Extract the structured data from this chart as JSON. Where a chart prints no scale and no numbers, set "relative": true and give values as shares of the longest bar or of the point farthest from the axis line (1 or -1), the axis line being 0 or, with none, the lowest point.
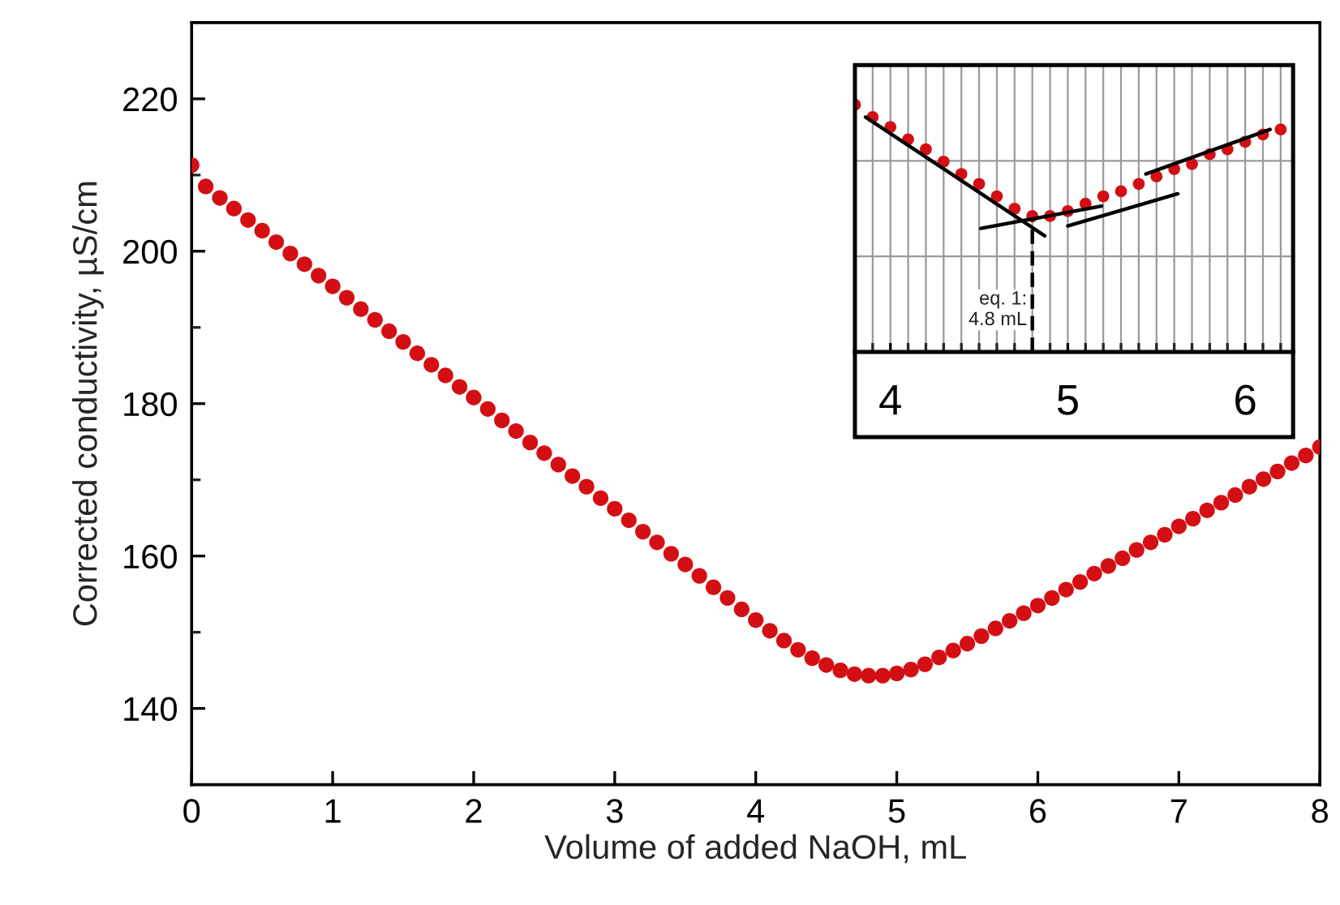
{
  "chart_data": [
    {
      "type": "scatter",
      "xlabel": "Volume of added NaOH, mL",
      "ylabel": "Corrected conductivity, µS/cm",
      "marker": "circle",
      "grid": false,
      "xlim": [
        0,
        8
      ],
      "ylim": [
        130,
        230
      ],
      "xticks": [
        0,
        1,
        2,
        3,
        4,
        5,
        6,
        7,
        8
      ],
      "yticks": [
        140,
        {
          "value": 150,
          "label": null
        },
        160,
        {
          "value": 170,
          "label": null
        },
        180,
        {
          "value": 190,
          "label": null
        },
        200,
        {
          "value": 210,
          "label": null
        },
        220
      ],
      "series": [
        {
          "color": "#d40f14",
          "x": [
            0,
            0.1,
            0.2,
            0.3,
            0.4,
            0.5,
            0.6,
            0.7,
            0.8,
            0.9,
            1.0,
            1.1,
            1.2,
            1.3,
            1.4,
            1.5,
            1.6,
            1.7,
            1.8,
            1.9,
            2.0,
            2.1,
            2.2,
            2.3,
            2.4,
            2.5,
            2.6,
            2.7,
            2.8,
            2.9,
            3.0,
            3.1,
            3.2,
            3.3,
            3.4,
            3.5,
            3.6,
            3.7,
            3.8,
            3.9,
            4.0,
            4.1,
            4.2,
            4.3,
            4.4,
            4.5,
            4.6,
            4.7,
            4.8,
            4.9,
            5.0,
            5.1,
            5.2,
            5.3,
            5.4,
            5.5,
            5.6,
            5.7,
            5.8,
            5.9,
            6.0,
            6.1,
            6.2,
            6.3,
            6.4,
            6.5,
            6.6,
            6.7,
            6.8,
            6.9,
            7.0,
            7.1,
            7.2,
            7.3,
            7.4,
            7.5,
            7.6,
            7.7,
            7.8,
            7.9,
            8.0
          ],
          "values": [
            211.3,
            208.5,
            207.0,
            205.6,
            204.1,
            202.7,
            201.2,
            199.7,
            198.3,
            196.8,
            195.4,
            193.9,
            192.4,
            191.0,
            189.5,
            188.1,
            186.6,
            185.1,
            183.7,
            182.2,
            180.8,
            179.3,
            177.8,
            176.4,
            174.9,
            173.5,
            172.0,
            170.5,
            169.1,
            167.6,
            166.2,
            164.7,
            163.2,
            161.8,
            160.3,
            158.9,
            157.4,
            155.9,
            154.5,
            153.0,
            151.6,
            150.2,
            148.9,
            147.7,
            146.6,
            145.7,
            145.0,
            144.5,
            144.3,
            144.3,
            144.6,
            145.1,
            145.8,
            146.7,
            147.6,
            148.5,
            149.5,
            150.5,
            151.5,
            152.5,
            153.5,
            154.5,
            155.6,
            156.6,
            157.7,
            158.7,
            159.7,
            160.8,
            161.8,
            162.8,
            163.9,
            164.9,
            166.0,
            167.0,
            168.0,
            169.1,
            170.1,
            171.1,
            172.2,
            173.2,
            174.3
          ]
        }
      ]
    },
    {
      "type": "scatter",
      "relative": true,
      "grid": true,
      "tick_labels": "x",
      "xlim": [
        3.8,
        6.27
      ],
      "xticks": [
        {
          "value": 3.9,
          "label": null
        },
        4,
        {
          "value": 4.1,
          "label": null
        },
        {
          "value": 4.2,
          "label": null
        },
        {
          "value": 4.3,
          "label": null
        },
        {
          "value": 4.4,
          "label": null
        },
        {
          "value": 4.5,
          "label": null
        },
        {
          "value": 4.6,
          "label": null
        },
        {
          "value": 4.7,
          "label": null
        },
        {
          "value": 4.8,
          "label": null
        },
        {
          "value": 4.9,
          "label": null
        },
        5,
        {
          "value": 5.1,
          "label": null
        },
        {
          "value": 5.2,
          "label": null
        },
        {
          "value": 5.3,
          "label": null
        },
        {
          "value": 5.4,
          "label": null
        },
        {
          "value": 5.5,
          "label": null
        },
        {
          "value": 5.6,
          "label": null
        },
        {
          "value": 5.7,
          "label": null
        },
        {
          "value": 5.8,
          "label": null
        },
        {
          "value": 5.9,
          "label": null
        },
        6,
        {
          "value": 6.1,
          "label": null
        },
        {
          "value": 6.2,
          "label": null
        }
      ],
      "ref_lines": [
        {
          "axis": "x",
          "value": 4.8,
          "label": "eq. 1:\n4.8 mL",
          "line_style": "dashed",
          "color": "#000000"
        }
      ],
      "series": [
        {
          "color": "#d40f14",
          "marker": "circle",
          "x": [
            3.8,
            3.9,
            4.0,
            4.1,
            4.2,
            4.3,
            4.4,
            4.5,
            4.6,
            4.7,
            4.8,
            4.9,
            5.0,
            5.1,
            5.2,
            5.3,
            5.4,
            5.5,
            5.6,
            5.7,
            5.8,
            5.9,
            6.0,
            6.1,
            6.2
          ],
          "values": [
            1.0,
            0.95,
            0.91,
            0.86,
            0.82,
            0.77,
            0.72,
            0.68,
            0.63,
            0.58,
            0.55,
            0.55,
            0.57,
            0.6,
            0.63,
            0.65,
            0.68,
            0.71,
            0.74,
            0.76,
            0.8,
            0.82,
            0.85,
            0.88,
            0.9
          ]
        },
        {
          "type": "line",
          "color": "#000000",
          "x": [
            3.86,
            4.87
          ],
          "values": [
            0.95,
            0.47
          ]
        },
        {
          "type": "line",
          "color": "#000000",
          "x": [
            4.51,
            5.19
          ],
          "values": [
            0.5,
            0.59
          ]
        },
        {
          "type": "line",
          "color": "#000000",
          "x": [
            5.0,
            5.62
          ],
          "values": [
            0.51,
            0.64
          ]
        },
        {
          "type": "line",
          "color": "#000000",
          "x": [
            5.44,
            6.14
          ],
          "values": [
            0.72,
            0.9
          ]
        }
      ]
    }
  ]
}
